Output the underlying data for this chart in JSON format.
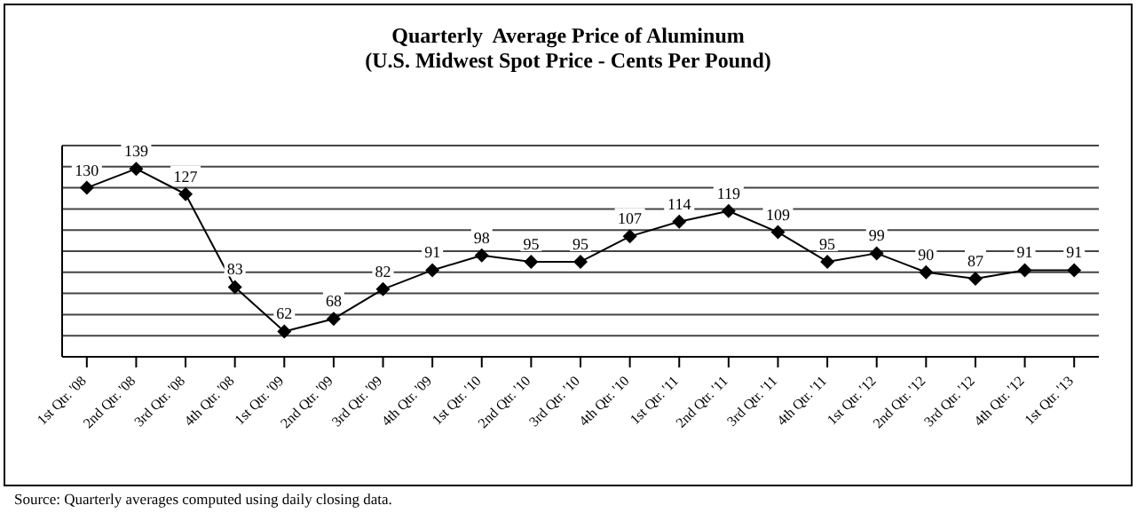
{
  "chart_data": {
    "type": "line",
    "title": "Quarterly  Average Price of Aluminum",
    "subtitle": "(U.S. Midwest Spot Price - Cents Per Pound)",
    "categories": [
      "1st Qtr. '08",
      "2nd Qtr. '08",
      "3rd Qtr. '08",
      "4th Qtr. '08",
      "1st Qtr. '09",
      "2nd Qtr. '09",
      "3rd Qtr. '09",
      "4th Qtr. '09",
      "1st Qtr. '10",
      "2nd Qtr. '10",
      "3rd Qtr. '10",
      "4th Qtr. '10",
      "1st Qtr. '11",
      "2nd Qtr. '11",
      "3rd Qtr. '11",
      "4th Qtr. '11",
      "1st Qtr. '12",
      "2nd Qtr. '12",
      "3rd Qtr. '12",
      "4th Qtr. '12",
      "1st Qtr. '13"
    ],
    "series": [
      {
        "color": "#000000",
        "values": [
          130,
          139,
          127,
          83,
          62,
          68,
          82,
          91,
          98,
          95,
          95,
          107,
          114,
          119,
          109,
          95,
          99,
          90,
          87,
          91,
          91
        ]
      }
    ],
    "ylim": [
      50,
      150
    ],
    "yticks": [
      {
        "value": 50,
        "label": null
      },
      {
        "value": 60,
        "label": null
      },
      {
        "value": 70,
        "label": null
      },
      {
        "value": 80,
        "label": null
      },
      {
        "value": 90,
        "label": null
      },
      {
        "value": 100,
        "label": null
      },
      {
        "value": 110,
        "label": null
      },
      {
        "value": 120,
        "label": null
      },
      {
        "value": 130,
        "label": null
      },
      {
        "value": 140,
        "label": null
      },
      {
        "value": 150,
        "label": null
      }
    ],
    "tick_labels": "x",
    "grid": "y",
    "marker": "diamond",
    "line_style": "solid",
    "data_labels": true,
    "legend": false,
    "annotations": [
      "Source:  Quarterly averages computed using daily closing data."
    ]
  }
}
